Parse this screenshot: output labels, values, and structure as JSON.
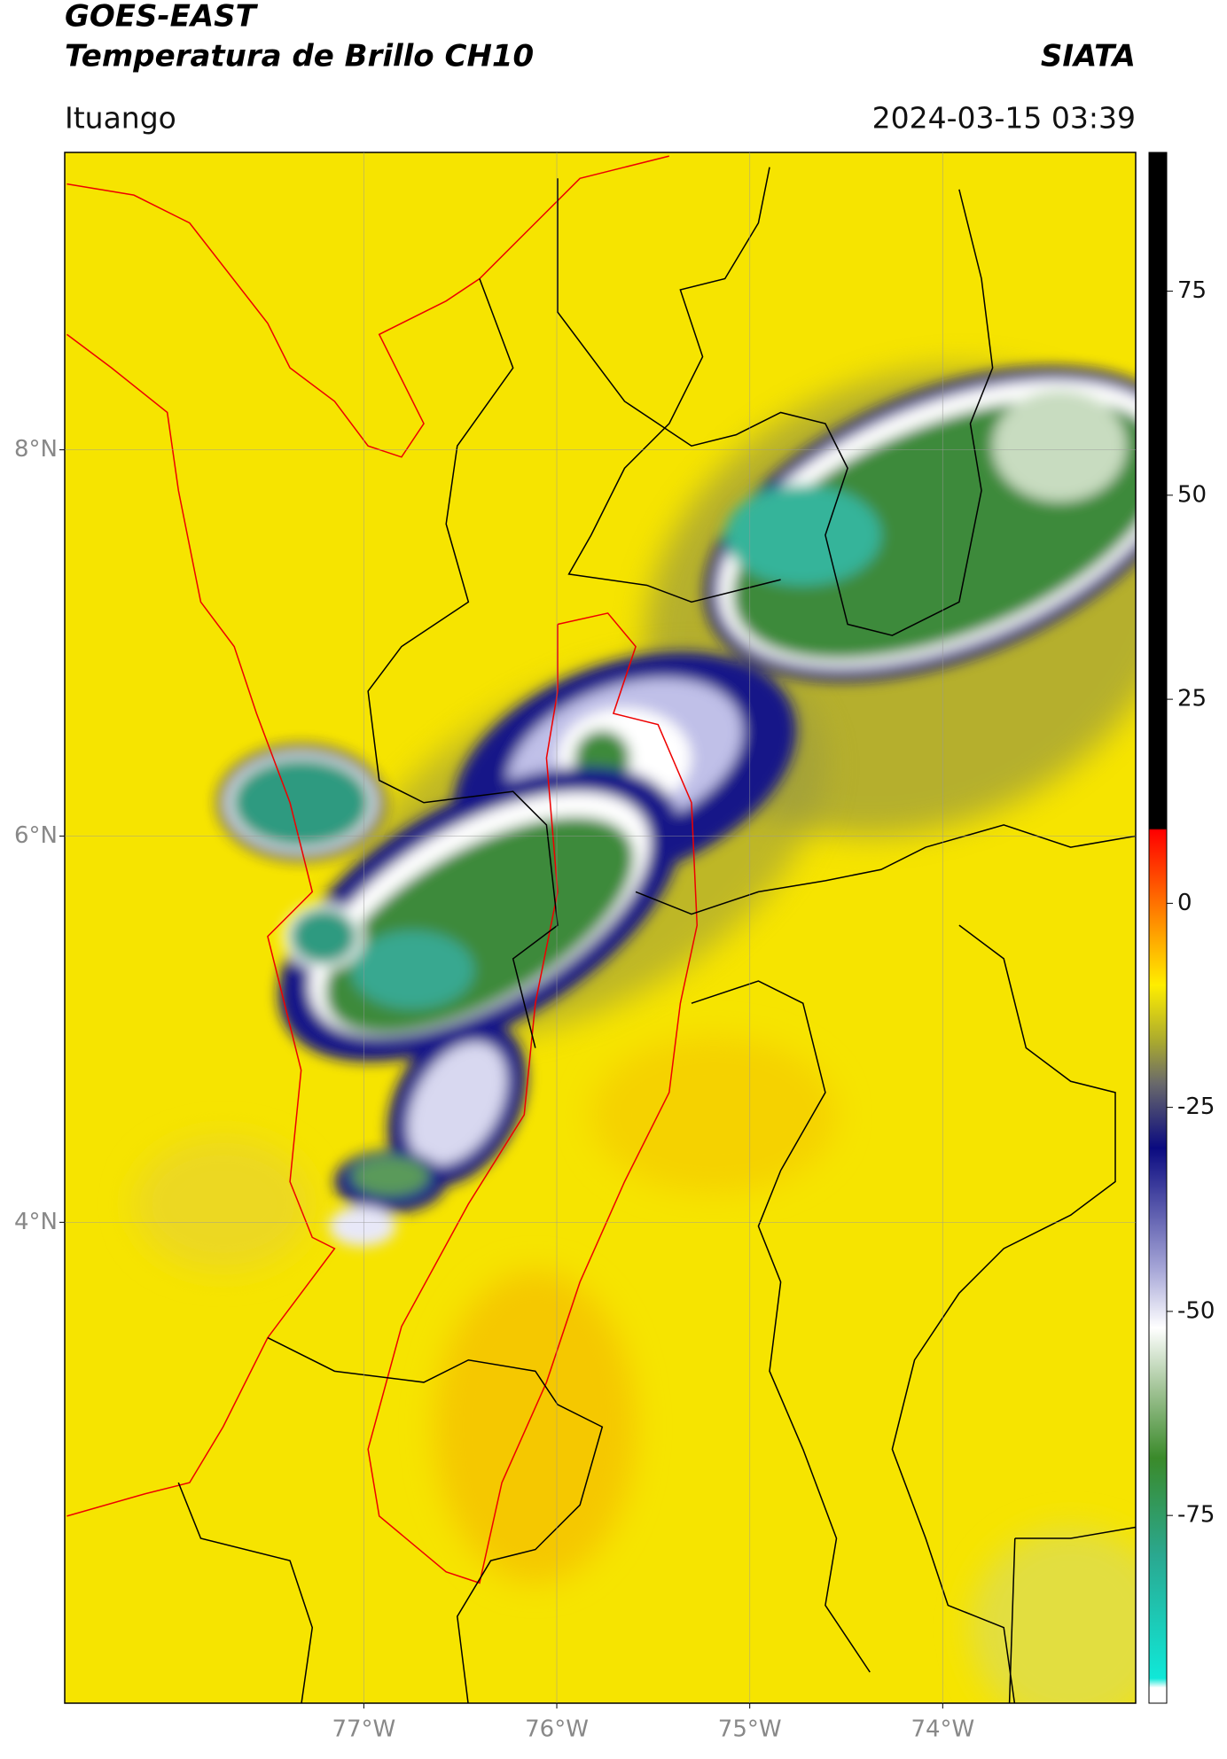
{
  "chart_data": {
    "type": "map",
    "title": "GOES-EAST",
    "subtitle": "Temperatura de Brillo CH10",
    "source": "SIATA",
    "location": "Ituango",
    "datetime": "2024-03-15 03:39",
    "xlim": [
      -78.55,
      -73.0
    ],
    "ylim": [
      1.51,
      9.54
    ],
    "xticks": [
      {
        "value": -77,
        "label": "77°W"
      },
      {
        "value": -76,
        "label": "76°W"
      },
      {
        "value": -75,
        "label": "75°W"
      },
      {
        "value": -74,
        "label": "74°W"
      }
    ],
    "yticks": [
      {
        "value": 4,
        "label": "4°N"
      },
      {
        "value": 6,
        "label": "6°N"
      },
      {
        "value": 8,
        "label": "8°N"
      }
    ],
    "grid": true,
    "colorbar": {
      "lim": [
        -98,
        92
      ],
      "ticks": [
        -75,
        -50,
        -25,
        0,
        25,
        50,
        75
      ]
    }
  }
}
